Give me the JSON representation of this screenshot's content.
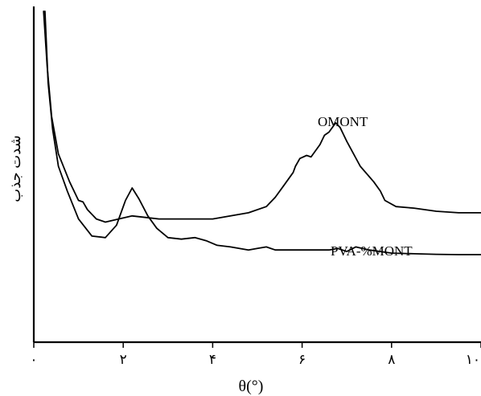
{
  "chart_data": {
    "type": "line",
    "xlabel": "θ(°)",
    "ylabel": "شدت جذب",
    "xlim": [
      0,
      10
    ],
    "ylim": [
      0,
      100
    ],
    "x_ticks": [
      {
        "value": 0,
        "label": "۰"
      },
      {
        "value": 2,
        "label": "۲"
      },
      {
        "value": 4,
        "label": "۴"
      },
      {
        "value": 6,
        "label": "۶"
      },
      {
        "value": 8,
        "label": "۸"
      },
      {
        "value": 10,
        "label": "۱۰"
      }
    ],
    "grid": false,
    "series": [
      {
        "name": "OMONT",
        "x": [
          0.22,
          0.3,
          0.4,
          0.55,
          0.8,
          1.0,
          1.1,
          1.2,
          1.4,
          1.6,
          1.9,
          2.2,
          2.5,
          2.8,
          3.2,
          3.6,
          4.0,
          4.4,
          4.8,
          5.2,
          5.4,
          5.6,
          5.8,
          5.85,
          5.95,
          6.1,
          6.2,
          6.4,
          6.5,
          6.6,
          6.75,
          6.85,
          7.0,
          7.3,
          7.6,
          7.75,
          7.85,
          8.1,
          8.5,
          9.0,
          9.5,
          10.0
        ],
        "y": [
          100,
          82,
          66,
          54,
          45,
          39,
          38.5,
          36,
          33,
          32,
          33,
          34,
          33.5,
          33,
          33,
          33,
          33,
          34,
          35,
          37,
          40,
          44,
          48,
          50,
          52.5,
          53.5,
          53,
          57,
          60,
          61,
          64,
          62.5,
          58,
          50,
          45,
          42,
          39,
          37,
          36.5,
          35.5,
          35,
          35
        ]
      },
      {
        "name": "PVA-%MONT",
        "x": [
          0.25,
          0.32,
          0.42,
          0.55,
          0.75,
          1.0,
          1.3,
          1.6,
          1.85,
          2.05,
          2.2,
          2.35,
          2.55,
          2.75,
          3.0,
          3.3,
          3.6,
          3.85,
          4.1,
          4.4,
          4.8,
          5.0,
          5.2,
          5.4,
          5.8,
          6.2,
          6.6,
          6.8,
          7.0,
          7.2,
          7.5,
          8.0,
          8.5,
          9.0,
          9.5,
          10.0
        ],
        "y": [
          100,
          77,
          62,
          50,
          42,
          33,
          27.5,
          27,
          31,
          39,
          43,
          39.5,
          34,
          30,
          27,
          26.5,
          27,
          26,
          24.5,
          24,
          23,
          23.5,
          24,
          23,
          23,
          23,
          23,
          23.5,
          22.5,
          24,
          23,
          22,
          21.8,
          21.6,
          21.5,
          21.5
        ]
      }
    ]
  }
}
